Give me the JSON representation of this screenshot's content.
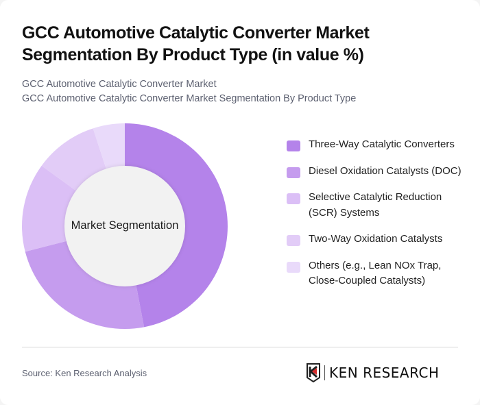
{
  "header": {
    "title": "GCC Automotive Catalytic Converter Market Segmentation By Product Type (in value %)",
    "subtitle_line1": "GCC Automotive Catalytic Converter Market",
    "subtitle_line2": "GCC Automotive Catalytic Converter Market Segmentation By Product Type"
  },
  "chart": {
    "center_label": "Market Segmentation"
  },
  "legend": {
    "items": [
      {
        "label": "Three-Way Catalytic Converters",
        "color": "#b483ea"
      },
      {
        "label": "Diesel Oxidation Catalysts (DOC)",
        "color": "#c59cee"
      },
      {
        "label": "Selective Catalytic Reduction (SCR) Systems",
        "color": "#dbbff6"
      },
      {
        "label": "Two-Way Oxidation Catalysts",
        "color": "#e2ccf7"
      },
      {
        "label": "Others (e.g., Lean NOx Trap, Close-Coupled Catalysts)",
        "color": "#e9dafa"
      }
    ]
  },
  "footer": {
    "source": "Source: Ken Research Analysis",
    "logo_text": "KEN RESEARCH"
  },
  "chart_data": {
    "type": "pie",
    "subtype": "donut",
    "title": "GCC Automotive Catalytic Converter Market Segmentation By Product Type (in value %)",
    "center_label": "Market Segmentation",
    "categories": [
      "Three-Way Catalytic Converters",
      "Diesel Oxidation Catalysts (DOC)",
      "Selective Catalytic Reduction (SCR) Systems",
      "Two-Way Oxidation Catalysts",
      "Others (e.g., Lean NOx Trap, Close-Coupled Catalysts)"
    ],
    "values": [
      47,
      24,
      14,
      10,
      5
    ],
    "colors": [
      "#b483ea",
      "#c59cee",
      "#dbbff6",
      "#e2ccf7",
      "#e9dafa"
    ],
    "unit": "%",
    "start_angle": "12 o'clock, clockwise",
    "legend_position": "right"
  }
}
